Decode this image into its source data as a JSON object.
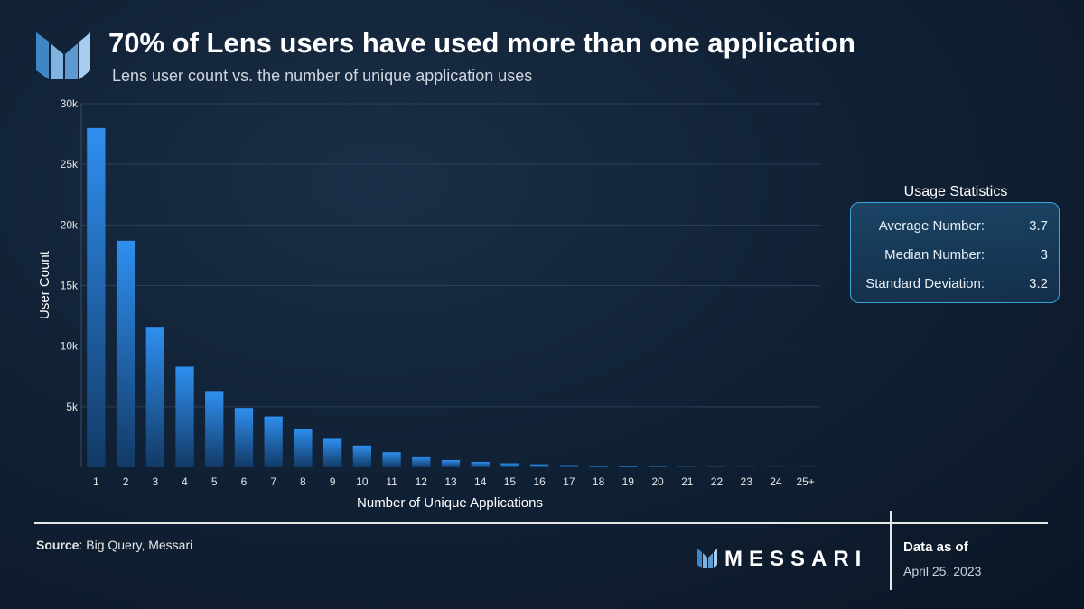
{
  "header": {
    "title": "70% of Lens users have used more than one application",
    "subtitle": "Lens user count vs. the number of unique application uses"
  },
  "chart_data": {
    "type": "bar",
    "xlabel": "Number of Unique Applications",
    "ylabel": "User Count",
    "ylim": [
      0,
      30000
    ],
    "yticks": [
      5000,
      10000,
      15000,
      20000,
      25000,
      30000
    ],
    "ytick_labels": [
      "5k",
      "10k",
      "15k",
      "20k",
      "25k",
      "30k"
    ],
    "grid": true,
    "categories": [
      "1",
      "2",
      "3",
      "4",
      "5",
      "6",
      "7",
      "8",
      "9",
      "10",
      "11",
      "12",
      "13",
      "14",
      "15",
      "16",
      "17",
      "18",
      "19",
      "20",
      "21",
      "22",
      "23",
      "24",
      "25+"
    ],
    "values": [
      28000,
      18700,
      11600,
      8300,
      6300,
      4900,
      4200,
      3200,
      2350,
      1800,
      1250,
      900,
      600,
      450,
      330,
      250,
      180,
      100,
      70,
      50,
      20,
      15,
      10,
      10,
      10
    ],
    "bar_color_top": "#2f8ff0",
    "bar_color_bottom": "#123a66"
  },
  "stats": {
    "title": "Usage Statistics",
    "rows": [
      {
        "label": "Average Number:",
        "value": "3.7"
      },
      {
        "label": "Median Number:",
        "value": "3"
      },
      {
        "label": "Standard Deviation:",
        "value": "3.2"
      }
    ]
  },
  "footer": {
    "source_label": "Source",
    "source_text": ": Big Query, Messari",
    "brand": "MESSARI",
    "asof_label": "Data as of",
    "asof_date": "April 25, 2023"
  }
}
